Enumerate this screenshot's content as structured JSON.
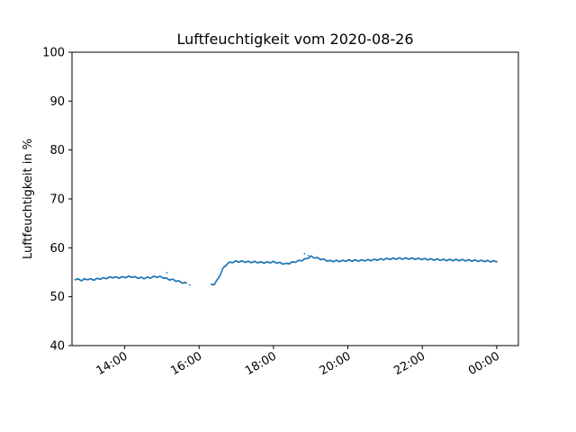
{
  "chart_data": {
    "type": "scatter",
    "title": "Luftfeuchtigkeit vom 2020-08-26",
    "xlabel": "",
    "ylabel": "Luftfeuchtigkeit in %",
    "ylim": [
      40,
      100
    ],
    "xlim": [
      "2020-08-26 12:35",
      "2020-08-27 00:35"
    ],
    "y_ticks": [
      40,
      50,
      60,
      70,
      80,
      90,
      100
    ],
    "x_ticks": [
      {
        "time": "2020-08-26 14:00",
        "label": "14:00"
      },
      {
        "time": "2020-08-26 16:00",
        "label": "16:00"
      },
      {
        "time": "2020-08-26 18:00",
        "label": "18:00"
      },
      {
        "time": "2020-08-26 20:00",
        "label": "20:00"
      },
      {
        "time": "2020-08-26 22:00",
        "label": "22:00"
      },
      {
        "time": "2020-08-27 00:00",
        "label": "00:00"
      }
    ],
    "grid": false,
    "marker_color": "#1f77b4",
    "series": [
      {
        "points": [
          [
            "2020-08-26 12:40",
            53.6
          ],
          [
            "2020-08-26 12:50",
            53.4
          ],
          [
            "2020-08-26 13:00",
            53.6
          ],
          [
            "2020-08-26 13:10",
            53.5
          ],
          [
            "2020-08-26 13:20",
            53.7
          ],
          [
            "2020-08-26 13:30",
            53.8
          ],
          [
            "2020-08-26 13:40",
            54.0
          ],
          [
            "2020-08-26 13:50",
            53.9
          ],
          [
            "2020-08-26 14:00",
            54.0
          ],
          [
            "2020-08-26 14:10",
            54.1
          ],
          [
            "2020-08-26 14:20",
            53.9
          ],
          [
            "2020-08-26 14:30",
            53.8
          ],
          [
            "2020-08-26 14:40",
            53.9
          ],
          [
            "2020-08-26 14:50",
            54.1
          ],
          [
            "2020-08-26 15:00",
            54.0
          ],
          [
            "2020-08-26 15:10",
            53.6
          ],
          [
            "2020-08-26 15:20",
            53.4
          ],
          [
            "2020-08-26 15:30",
            53.0
          ],
          [
            "2020-08-26 15:40",
            52.7
          ],
          [
            "2020-08-26 16:20",
            52.5
          ],
          [
            "2020-08-26 16:25",
            52.6
          ],
          [
            "2020-08-26 16:30",
            53.5
          ],
          [
            "2020-08-26 16:35",
            54.8
          ],
          [
            "2020-08-26 16:40",
            56.0
          ],
          [
            "2020-08-26 16:45",
            56.7
          ],
          [
            "2020-08-26 16:50",
            57.0
          ],
          [
            "2020-08-26 17:00",
            57.2
          ],
          [
            "2020-08-26 17:10",
            57.2
          ],
          [
            "2020-08-26 17:20",
            57.1
          ],
          [
            "2020-08-26 17:30",
            57.1
          ],
          [
            "2020-08-26 17:40",
            57.0
          ],
          [
            "2020-08-26 17:50",
            57.0
          ],
          [
            "2020-08-26 18:00",
            57.1
          ],
          [
            "2020-08-26 18:10",
            56.9
          ],
          [
            "2020-08-26 18:20",
            56.7
          ],
          [
            "2020-08-26 18:30",
            57.0
          ],
          [
            "2020-08-26 18:40",
            57.3
          ],
          [
            "2020-08-26 18:50",
            57.6
          ],
          [
            "2020-08-26 19:00",
            58.2
          ],
          [
            "2020-08-26 19:10",
            57.9
          ],
          [
            "2020-08-26 19:20",
            57.6
          ],
          [
            "2020-08-26 19:30",
            57.3
          ],
          [
            "2020-08-26 19:40",
            57.3
          ],
          [
            "2020-08-26 19:50",
            57.3
          ],
          [
            "2020-08-26 20:00",
            57.4
          ],
          [
            "2020-08-26 20:20",
            57.4
          ],
          [
            "2020-08-26 20:40",
            57.5
          ],
          [
            "2020-08-26 21:00",
            57.7
          ],
          [
            "2020-08-26 21:20",
            57.8
          ],
          [
            "2020-08-26 21:40",
            57.8
          ],
          [
            "2020-08-26 22:00",
            57.7
          ],
          [
            "2020-08-26 22:20",
            57.6
          ],
          [
            "2020-08-26 22:40",
            57.5
          ],
          [
            "2020-08-26 23:00",
            57.5
          ],
          [
            "2020-08-26 23:20",
            57.4
          ],
          [
            "2020-08-26 23:40",
            57.3
          ],
          [
            "2020-08-27 00:00",
            57.2
          ]
        ],
        "outliers": [
          [
            "2020-08-26 15:08",
            54.9
          ],
          [
            "2020-08-26 15:45",
            52.4
          ],
          [
            "2020-08-26 18:50",
            58.8
          ],
          [
            "2020-08-26 18:56",
            58.4
          ]
        ]
      }
    ]
  }
}
